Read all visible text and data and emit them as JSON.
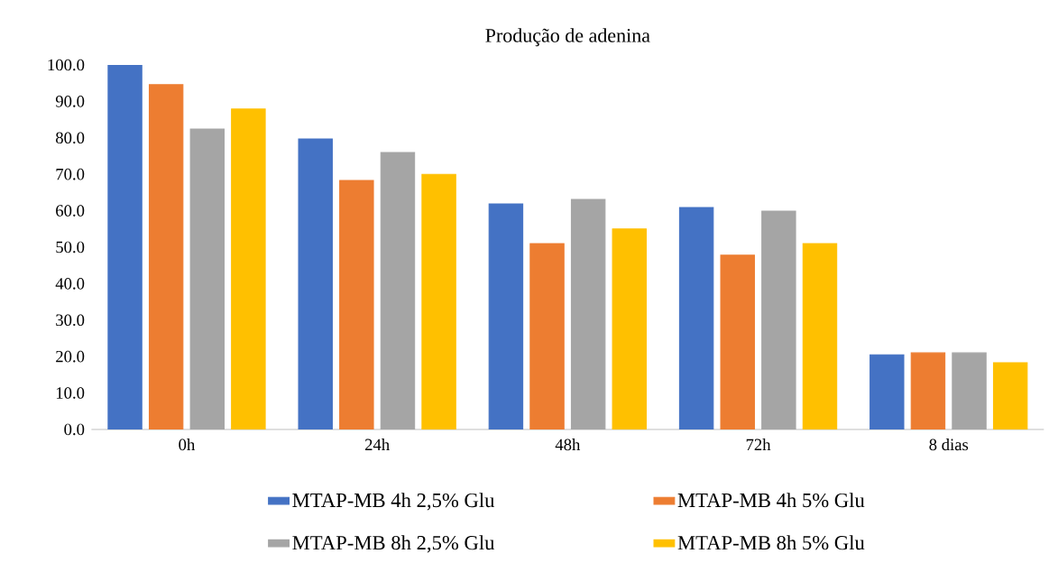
{
  "chart_data": {
    "type": "bar",
    "title": "Produção de adenina",
    "categories": [
      "0h",
      "24h",
      "48h",
      "72h",
      "8 dias"
    ],
    "series": [
      {
        "name": "MTAP-MB 4h 2,5% Glu",
        "color": "#4472c4",
        "values": [
          100.0,
          79.7,
          61.9,
          60.9,
          20.5
        ]
      },
      {
        "name": "MTAP-MB 4h 5% Glu",
        "color": "#ed7d31",
        "values": [
          94.6,
          68.3,
          51.0,
          47.8,
          21.0
        ]
      },
      {
        "name": "MTAP-MB 8h 2,5% Glu",
        "color": "#a5a5a5",
        "values": [
          82.4,
          76.0,
          63.1,
          59.9,
          21.0
        ]
      },
      {
        "name": "MTAP-MB 8h 5% Glu",
        "color": "#ffc000",
        "values": [
          87.9,
          70.0,
          55.0,
          51.0,
          18.3
        ]
      }
    ],
    "ylim": [
      0,
      100
    ],
    "yticks": [
      {
        "value": 0,
        "label": "0.0"
      },
      {
        "value": 10,
        "label": "10.0"
      },
      {
        "value": 20,
        "label": "20.0"
      },
      {
        "value": 30,
        "label": "30.0"
      },
      {
        "value": 40,
        "label": "40.0"
      },
      {
        "value": 50,
        "label": "50.0"
      },
      {
        "value": 60,
        "label": "60.0"
      },
      {
        "value": 70,
        "label": "70.0"
      },
      {
        "value": 80,
        "label": "80.0"
      },
      {
        "value": 90,
        "label": "90.0"
      },
      {
        "value": 100,
        "label": "100.0"
      }
    ],
    "grid": false,
    "legend": "bottom"
  }
}
